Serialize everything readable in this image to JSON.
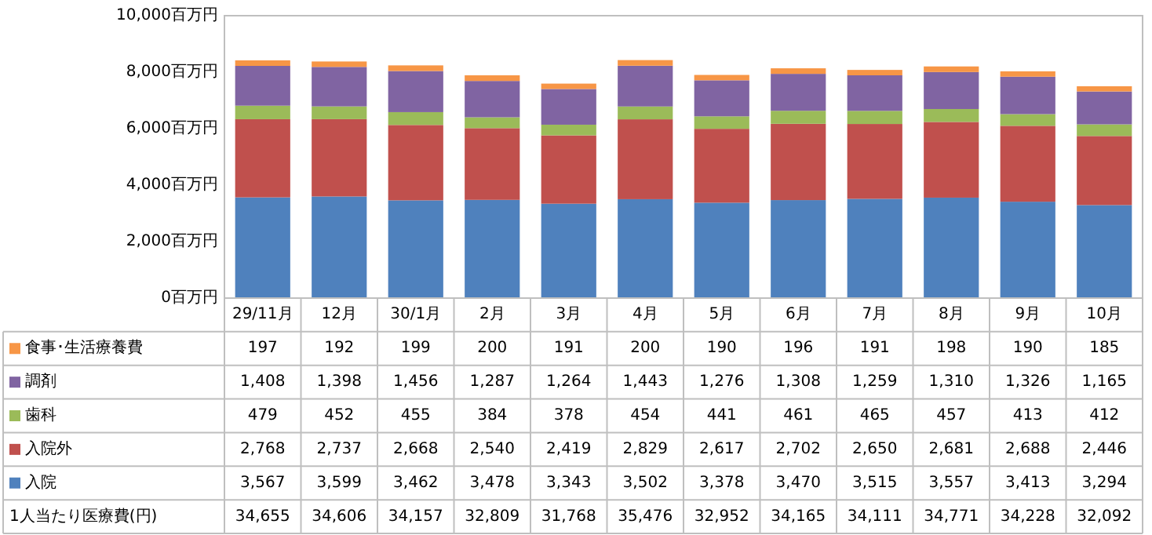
{
  "chart_data": {
    "type": "bar",
    "stacked": true,
    "legend": "bottom",
    "grid": false,
    "categories": [
      "29/11月",
      "12月",
      "30/1月",
      "2月",
      "3月",
      "4月",
      "5月",
      "6月",
      "7月",
      "8月",
      "9月",
      "10月"
    ],
    "ylim": [
      0,
      10000
    ],
    "yticks": [
      {
        "value": 0,
        "label": "0百万円"
      },
      {
        "value": 2000,
        "label": "2,000百万円"
      },
      {
        "value": 4000,
        "label": "4,000百万円"
      },
      {
        "value": 6000,
        "label": "6,000百万円"
      },
      {
        "value": 8000,
        "label": "8,000百万円"
      },
      {
        "value": 10000,
        "label": "10,000百万円"
      }
    ],
    "series": [
      {
        "name": "入院",
        "color": "#4f81bd",
        "values": [
          3567,
          3599,
          3462,
          3478,
          3343,
          3502,
          3378,
          3470,
          3515,
          3557,
          3413,
          3294
        ],
        "value_labels": [
          "3,567",
          "3,599",
          "3,462",
          "3,478",
          "3,343",
          "3,502",
          "3,378",
          "3,470",
          "3,515",
          "3,557",
          "3,413",
          "3,294"
        ]
      },
      {
        "name": "入院外",
        "color": "#c0504d",
        "values": [
          2768,
          2737,
          2668,
          2540,
          2419,
          2829,
          2617,
          2702,
          2650,
          2681,
          2688,
          2446
        ],
        "value_labels": [
          "2,768",
          "2,737",
          "2,668",
          "2,540",
          "2,419",
          "2,829",
          "2,617",
          "2,702",
          "2,650",
          "2,681",
          "2,688",
          "2,446"
        ]
      },
      {
        "name": "歯科",
        "color": "#9bbb59",
        "values": [
          479,
          452,
          455,
          384,
          378,
          454,
          441,
          461,
          465,
          457,
          413,
          412
        ],
        "value_labels": [
          "479",
          "452",
          "455",
          "384",
          "378",
          "454",
          "441",
          "461",
          "465",
          "457",
          "413",
          "412"
        ]
      },
      {
        "name": "調剤",
        "color": "#8064a2",
        "values": [
          1408,
          1398,
          1456,
          1287,
          1264,
          1443,
          1276,
          1308,
          1259,
          1310,
          1326,
          1165
        ],
        "value_labels": [
          "1,408",
          "1,398",
          "1,456",
          "1,287",
          "1,264",
          "1,443",
          "1,276",
          "1,308",
          "1,259",
          "1,310",
          "1,326",
          "1,165"
        ]
      },
      {
        "name": "食事･生活療養費",
        "color": "#f79646",
        "values": [
          197,
          192,
          199,
          200,
          191,
          200,
          190,
          196,
          191,
          198,
          190,
          185
        ],
        "value_labels": [
          "197",
          "192",
          "199",
          "200",
          "191",
          "200",
          "190",
          "196",
          "191",
          "198",
          "190",
          "185"
        ]
      }
    ],
    "annotations": [
      "1人当たり医療費(円)",
      "34,655",
      "34,606",
      "34,157",
      "32,809",
      "31,768",
      "35,476",
      "32,952",
      "34,165",
      "34,111",
      "34,771",
      "34,228",
      "32,092"
    ]
  }
}
